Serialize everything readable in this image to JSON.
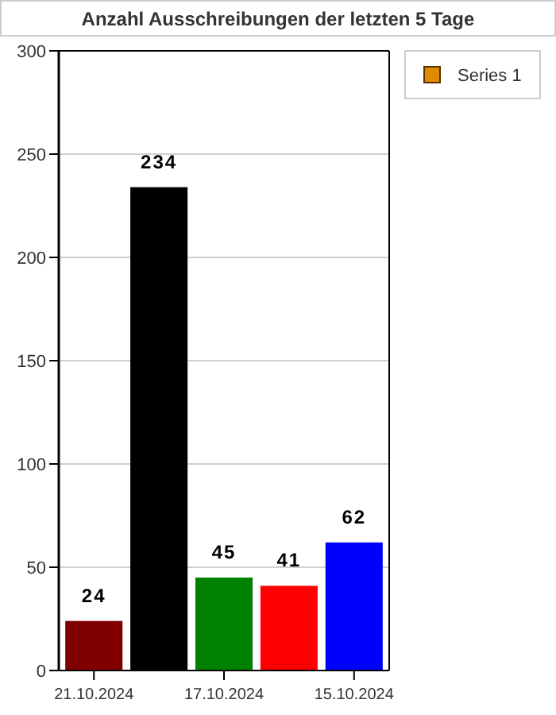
{
  "chart_data": {
    "type": "bar",
    "title": "Anzahl Ausschreibungen der letzten 5 Tage",
    "categories": [
      "21.10.2024",
      null,
      "17.10.2024",
      null,
      "15.10.2024"
    ],
    "series": [
      {
        "name": "Series 1",
        "color": "#e08a00",
        "colors": [
          "#800000",
          "#000000",
          "#008000",
          "#ff0000",
          "#0000ff"
        ],
        "values": [
          24,
          234,
          45,
          41,
          62
        ]
      }
    ],
    "ylim": [
      0,
      300
    ],
    "yticks": [
      0,
      50,
      100,
      150,
      200,
      250,
      300
    ],
    "grid": "y",
    "legend": "top right",
    "data_labels": true
  }
}
